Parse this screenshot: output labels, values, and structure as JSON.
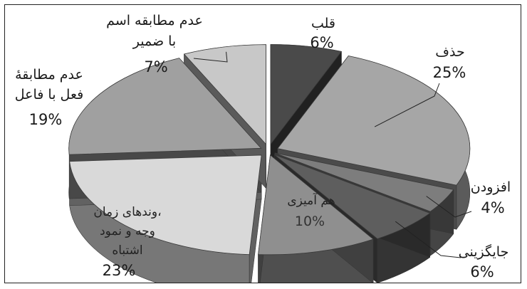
{
  "chart_data": {
    "type": "pie",
    "title": "",
    "slices": [
      {
        "label": "قلب",
        "value": 6,
        "value_label": "6%",
        "color": "#4a4a4a"
      },
      {
        "label": "حذف",
        "value": 25,
        "value_label": "25%",
        "color": "#a6a6a6"
      },
      {
        "label": "افزودن",
        "value": 4,
        "value_label": "4%",
        "color": "#7d7d7d"
      },
      {
        "label": "جایگزینی",
        "value": 6,
        "value_label": "6%",
        "color": "#5e5e5e"
      },
      {
        "label": "هم آمیزی",
        "value": 10,
        "value_label": "10%",
        "color": "#8f8f8f"
      },
      {
        "label": "وندهای زمان، وجه و نمود اشتباه",
        "value": 23,
        "value_label": "23%",
        "color": "#d9d9d9"
      },
      {
        "label": "عدم مطابقهٔ فعل با فاعل",
        "value": 19,
        "value_label": "19%",
        "color": "#a0a0a0"
      },
      {
        "label": "عدم مطابقه اسم با ضمیر",
        "value": 7,
        "value_label": "7%",
        "color": "#c8c8c8"
      }
    ],
    "three_d": true,
    "exploded": true,
    "legend": "none",
    "data_labels": "outside with leader lines"
  }
}
